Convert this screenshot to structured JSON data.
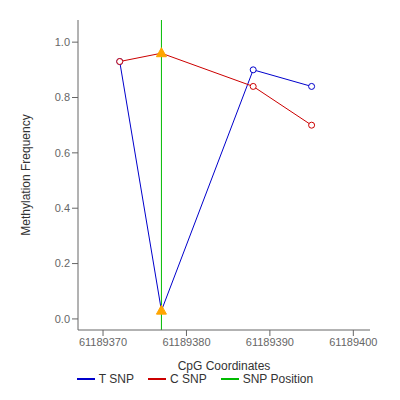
{
  "chart_data": {
    "type": "line",
    "xlabel": "CpG Coordinates",
    "ylabel": "Methylation Frequency",
    "x": [
      61189372,
      61189377,
      61189388,
      61189395
    ],
    "series": [
      {
        "name": "T SNP",
        "color": "#0000CC",
        "marker": "circle",
        "values": [
          0.93,
          0.03,
          0.9,
          0.84
        ]
      },
      {
        "name": "C SNP",
        "color": "#CC0000",
        "marker": "circle",
        "values": [
          0.93,
          0.96,
          0.84,
          0.7
        ]
      }
    ],
    "reference_lines": [
      {
        "x": 61189377,
        "name": "SNP Position",
        "color": "#00BB00"
      }
    ],
    "highlight_points": {
      "x": 61189377,
      "marker": "triangle",
      "color": "#FFA500"
    },
    "xlim": [
      61189367,
      61189402
    ],
    "ylim": [
      -0.04,
      1.08
    ],
    "xticks": [
      61189370,
      61189380,
      61189390,
      61189400
    ],
    "yticks": [
      {
        "value": 0.0,
        "label": "0.0"
      },
      0.2,
      0.4,
      0.6,
      0.8,
      {
        "value": 1.0,
        "label": "1.0"
      }
    ],
    "grid": false,
    "legend": "bottom"
  }
}
